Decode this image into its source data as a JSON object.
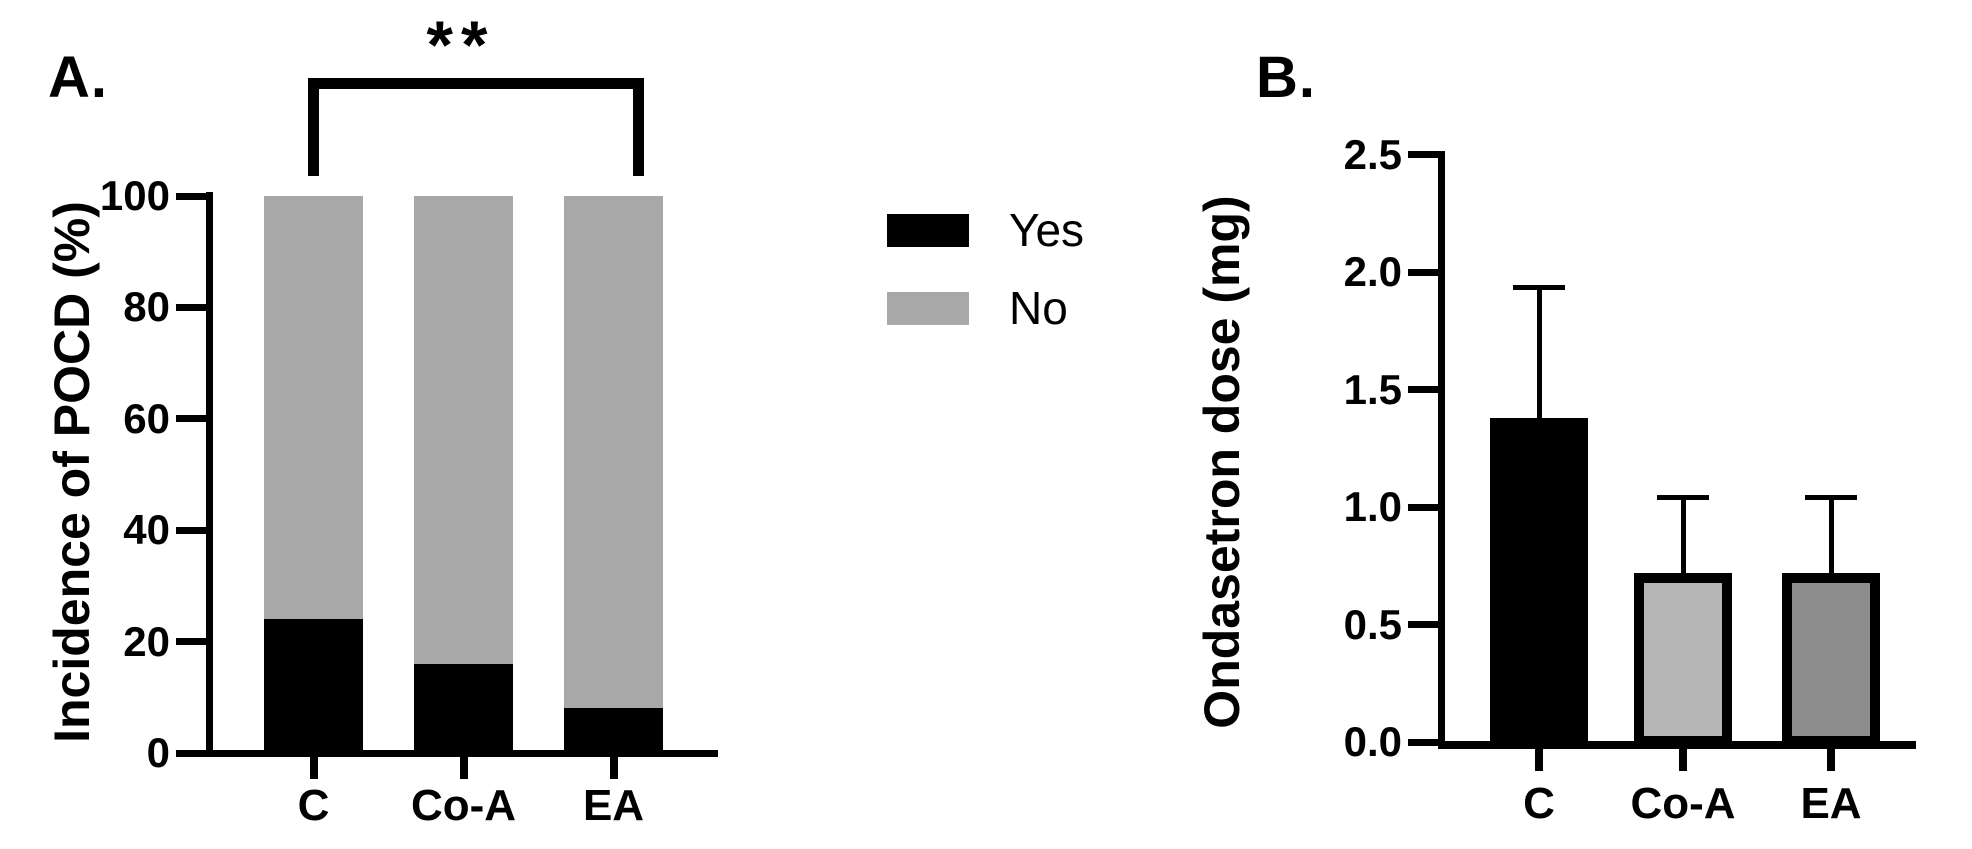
{
  "figure_title": "",
  "chart_data": [
    {
      "type": "bar",
      "subtype": "stacked-percent",
      "panel_label": "A.",
      "title": "",
      "xlabel": "",
      "ylabel": "Incidence of POCD (%)",
      "categories": [
        "C",
        "Co-A",
        "EA"
      ],
      "series": [
        {
          "name": "Yes",
          "color": "#000000",
          "values": [
            24,
            16,
            8
          ]
        },
        {
          "name": "No",
          "color": "#a8a8a8",
          "values": [
            76,
            84,
            92
          ]
        }
      ],
      "ylim": [
        0,
        100
      ],
      "yticks": [
        "0",
        "20",
        "40",
        "60",
        "80",
        "100"
      ],
      "grid": false,
      "legend_position": "right-of-plot",
      "annotation": {
        "type": "significance-bracket",
        "text": "**",
        "between": [
          "C",
          "EA"
        ]
      }
    },
    {
      "type": "bar",
      "subtype": "mean-with-sd",
      "panel_label": "B.",
      "title": "",
      "xlabel": "",
      "ylabel": "Ondasetron dose (mg)",
      "categories": [
        "C",
        "Co-A",
        "EA"
      ],
      "values": [
        1.38,
        0.72,
        0.72
      ],
      "error_upper": [
        0.55,
        0.32,
        0.32
      ],
      "bar_colors": [
        "#000000",
        "#b5b5b5",
        "#8d8d8d"
      ],
      "bar_border_color": "#000000",
      "ylim": [
        0,
        2.5
      ],
      "yticks": [
        "0.0",
        "0.5",
        "1.0",
        "1.5",
        "2.0",
        "2.5"
      ],
      "grid": false,
      "legend_position": "none"
    }
  ]
}
